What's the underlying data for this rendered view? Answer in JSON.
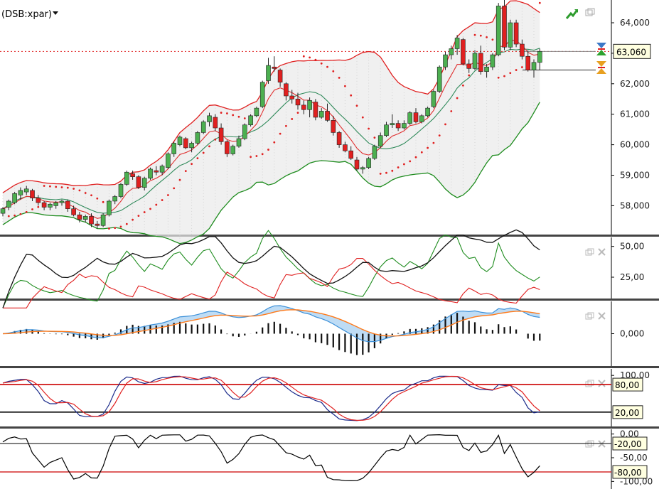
{
  "header": {
    "symbol": "(DSB:xpar)"
  },
  "colors": {
    "bull": "#4caf50",
    "bear": "#e02020",
    "band_upper": "#e02020",
    "band_lower": "#1e8c1e",
    "sar": "#e02020",
    "signal": "#ff7a1a",
    "macd": "#3a8fd8",
    "ref_red": "#cc0000"
  },
  "icons": [
    "trend-up-icon",
    "window-restore-icon",
    "close-icon",
    "sort-icon",
    "price-flag-icon"
  ],
  "chart_data": [
    {
      "type": "candlestick",
      "panel": "price",
      "y_ticks": [
        "58,000",
        "59,000",
        "60,000",
        "61,000",
        "62,000",
        "63,000",
        "64,000"
      ],
      "ylim": [
        57100,
        64700
      ],
      "last_price_label": "63,060",
      "last_price": 63060,
      "ref_price": 62450,
      "ohlc": [
        [
          57750,
          57950,
          57650,
          57900
        ],
        [
          57950,
          58200,
          57850,
          58150
        ],
        [
          58100,
          58450,
          58050,
          58400
        ],
        [
          58350,
          58600,
          58200,
          58500
        ],
        [
          58450,
          58650,
          58350,
          58550
        ],
        [
          58500,
          58550,
          58150,
          58250
        ],
        [
          58250,
          58350,
          58000,
          58100
        ],
        [
          58100,
          58150,
          57850,
          57950
        ],
        [
          57950,
          58100,
          57850,
          58050
        ],
        [
          58000,
          58150,
          57900,
          58100
        ],
        [
          58100,
          58200,
          58000,
          58150
        ],
        [
          58150,
          58200,
          57800,
          57900
        ],
        [
          57900,
          58000,
          57650,
          57700
        ],
        [
          57700,
          57800,
          57450,
          57550
        ],
        [
          57550,
          57700,
          57450,
          57650
        ],
        [
          57650,
          57750,
          57300,
          57400
        ],
        [
          57400,
          57500,
          57250,
          57350
        ],
        [
          57350,
          57750,
          57300,
          57700
        ],
        [
          57700,
          58200,
          57650,
          58150
        ],
        [
          58150,
          58350,
          58050,
          58300
        ],
        [
          58300,
          58750,
          58250,
          58700
        ],
        [
          58700,
          59150,
          58650,
          59100
        ],
        [
          59050,
          59150,
          58850,
          58950
        ],
        [
          58950,
          59000,
          58550,
          58600
        ],
        [
          58600,
          58950,
          58500,
          58900
        ],
        [
          58900,
          59250,
          58850,
          59200
        ],
        [
          59150,
          59300,
          59000,
          59100
        ],
        [
          59100,
          59350,
          59000,
          59300
        ],
        [
          59250,
          59750,
          59200,
          59700
        ],
        [
          59700,
          60100,
          59600,
          60050
        ],
        [
          60000,
          60300,
          59950,
          60250
        ],
        [
          60200,
          60250,
          59850,
          59900
        ],
        [
          59900,
          60100,
          59750,
          60050
        ],
        [
          60050,
          60450,
          60000,
          60400
        ],
        [
          60400,
          60800,
          60350,
          60750
        ],
        [
          60750,
          61050,
          60600,
          60950
        ],
        [
          60900,
          61000,
          60450,
          60550
        ],
        [
          60550,
          60700,
          60000,
          60100
        ],
        [
          60100,
          60150,
          59600,
          59700
        ],
        [
          59700,
          60000,
          59650,
          59950
        ],
        [
          59950,
          60300,
          59900,
          60200
        ],
        [
          60200,
          60700,
          60150,
          60650
        ],
        [
          60650,
          61000,
          60600,
          60950
        ],
        [
          60950,
          61250,
          60900,
          61200
        ],
        [
          61250,
          62100,
          61200,
          62050
        ],
        [
          62100,
          62850,
          62000,
          62600
        ],
        [
          62550,
          62900,
          62400,
          62500
        ],
        [
          62450,
          62500,
          61900,
          62050
        ],
        [
          62000,
          62050,
          61450,
          61600
        ],
        [
          61600,
          61800,
          61350,
          61500
        ],
        [
          61500,
          61700,
          61150,
          61300
        ],
        [
          61300,
          61450,
          61000,
          61150
        ],
        [
          61150,
          61550,
          60900,
          61450
        ],
        [
          61400,
          61500,
          60800,
          60900
        ],
        [
          60900,
          61200,
          60850,
          61100
        ],
        [
          61100,
          61350,
          60750,
          60800
        ],
        [
          60800,
          60950,
          60300,
          60400
        ],
        [
          60400,
          60450,
          59900,
          60000
        ],
        [
          60000,
          60100,
          59750,
          59800
        ],
        [
          59800,
          59950,
          59500,
          59550
        ],
        [
          59500,
          59600,
          59150,
          59200
        ],
        [
          59200,
          59300,
          59050,
          59250
        ],
        [
          59250,
          59600,
          59200,
          59550
        ],
        [
          59550,
          60000,
          59500,
          59950
        ],
        [
          59950,
          60400,
          59900,
          60300
        ],
        [
          60300,
          60750,
          60250,
          60650
        ],
        [
          60650,
          61000,
          60550,
          60700
        ],
        [
          60700,
          60800,
          60450,
          60550
        ],
        [
          60550,
          60800,
          60500,
          60700
        ],
        [
          60700,
          61100,
          60650,
          61050
        ],
        [
          61050,
          61200,
          60700,
          60750
        ],
        [
          60750,
          61000,
          60700,
          60950
        ],
        [
          60950,
          61250,
          60900,
          61200
        ],
        [
          61250,
          61800,
          61200,
          61750
        ],
        [
          61750,
          62600,
          61700,
          62550
        ],
        [
          62550,
          63050,
          62450,
          62950
        ],
        [
          62950,
          63250,
          62800,
          63150
        ],
        [
          63150,
          63600,
          62950,
          63500
        ],
        [
          63450,
          63500,
          62600,
          62650
        ],
        [
          62650,
          62800,
          62350,
          62500
        ],
        [
          62500,
          63100,
          62450,
          63000
        ],
        [
          63000,
          63250,
          62300,
          62400
        ],
        [
          62400,
          62650,
          62200,
          62550
        ],
        [
          62550,
          63000,
          62450,
          62950
        ],
        [
          62950,
          64650,
          62900,
          64550
        ],
        [
          64550,
          64800,
          63100,
          63200
        ],
        [
          63200,
          64100,
          63100,
          64000
        ],
        [
          64000,
          64100,
          63200,
          63300
        ],
        [
          63300,
          63450,
          62800,
          62900
        ],
        [
          62900,
          63100,
          62400,
          62450
        ],
        [
          62450,
          62800,
          62200,
          62700
        ],
        [
          62700,
          63150,
          62450,
          63060
        ]
      ]
    },
    {
      "type": "line",
      "panel": "dmi",
      "y_ticks": [
        "25,00",
        "50,00"
      ],
      "ylim": [
        10,
        55
      ]
    },
    {
      "type": "line",
      "panel": "macd",
      "y_ticks": [
        "0,000"
      ]
    },
    {
      "type": "line",
      "panel": "stochastic",
      "y_ticks": [
        "100,00",
        "80,00",
        "20,00"
      ],
      "ylim": [
        -5,
        108
      ],
      "levels": [
        80,
        20
      ]
    },
    {
      "type": "line",
      "panel": "williams_r",
      "y_ticks": [
        "0,00",
        "-20,00",
        "-50,00",
        "-80,00",
        "-100,00"
      ],
      "ylim": [
        -110,
        4
      ],
      "levels": [
        -20,
        -80
      ]
    }
  ]
}
